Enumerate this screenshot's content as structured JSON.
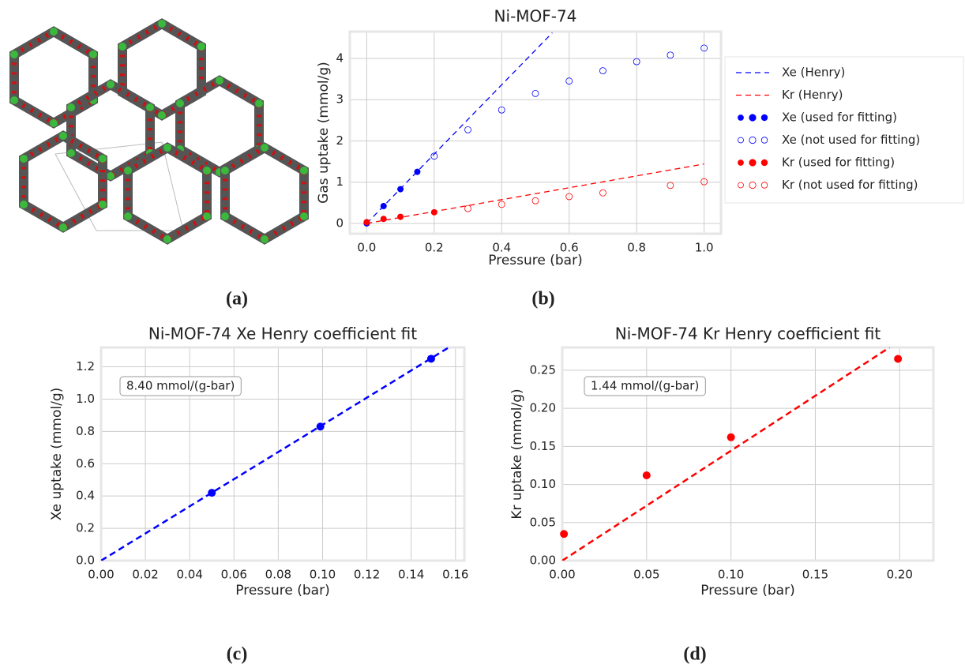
{
  "panel_labels": [
    "(a)",
    "(b)",
    "(c)",
    "(d)"
  ],
  "chart_data": [
    {
      "type": "scatter",
      "title": "Ni-MOF-74",
      "xlabel": "Pressure (bar)",
      "ylabel": "Gas uptake (mmol/g)",
      "xlim": [
        -0.05,
        1.05
      ],
      "ylim": [
        -0.25,
        4.65
      ],
      "xticks": [
        {
          "value": 0,
          "label": "0.0"
        },
        0.2,
        0.4,
        0.6,
        0.8,
        {
          "value": 1,
          "label": "1.0"
        }
      ],
      "yticks": [
        0,
        1,
        2,
        3,
        4
      ],
      "grid": true,
      "legend": "outside right",
      "series": [
        {
          "name": "Xe (Henry)",
          "color": "#0000ff",
          "style": "dashed",
          "x": [
            0,
            0.55
          ],
          "values": [
            0,
            4.62
          ]
        },
        {
          "name": "Kr (Henry)",
          "color": "#ff0000",
          "style": "dashed",
          "x": [
            0,
            1
          ],
          "values": [
            0,
            1.44
          ]
        },
        {
          "name": "Xe (used for fitting)",
          "color": "#0000ff",
          "style": "filled",
          "x": [
            0,
            0.05,
            0.1,
            0.15
          ],
          "values": [
            0,
            0.42,
            0.83,
            1.25
          ]
        },
        {
          "name": "Xe (not used for fitting)",
          "color": "#0000ff",
          "style": "open",
          "x": [
            0.2,
            0.3,
            0.4,
            0.5,
            0.6,
            0.7,
            0.8,
            0.9,
            1
          ],
          "values": [
            1.63,
            2.27,
            2.75,
            3.15,
            3.45,
            3.7,
            3.92,
            4.08,
            4.25
          ]
        },
        {
          "name": "Kr (used for fitting)",
          "color": "#ff0000",
          "style": "filled",
          "x": [
            0,
            0.05,
            0.1,
            0.2
          ],
          "values": [
            0.03,
            0.11,
            0.16,
            0.27
          ]
        },
        {
          "name": "Kr (not used for fitting)",
          "color": "#ff0000",
          "style": "open",
          "x": [
            0.3,
            0.4,
            0.5,
            0.6,
            0.7,
            0.9,
            1
          ],
          "values": [
            0.36,
            0.46,
            0.55,
            0.65,
            0.74,
            0.92,
            1.01
          ]
        }
      ]
    },
    {
      "type": "scatter",
      "title": "Ni-MOF-74 Xe Henry coefficient fit",
      "xlabel": "Pressure (bar)",
      "ylabel": "Xe uptake (mmol/g)",
      "annotation": "8.40 mmol/(g-bar)",
      "xlim": [
        0,
        0.164
      ],
      "ylim": [
        0,
        1.32
      ],
      "xticks": [
        {
          "value": 0,
          "label": "0.00"
        },
        0.02,
        0.04,
        0.06,
        0.08,
        {
          "value": 0.1,
          "label": "0.10"
        },
        0.12,
        0.14,
        0.16
      ],
      "yticks": [
        {
          "value": 0,
          "label": "0.0"
        },
        0.2,
        0.4,
        0.6,
        0.8,
        {
          "value": 1,
          "label": "1.0"
        },
        1.2
      ],
      "grid": true,
      "series": [
        {
          "color": "#0000ff",
          "style": "dashed",
          "x": [
            0,
            0.157
          ],
          "values": [
            0,
            1.32
          ]
        },
        {
          "color": "#0000ff",
          "style": "filled",
          "x": [
            0.05,
            0.099,
            0.149
          ],
          "values": [
            0.42,
            0.83,
            1.25
          ]
        }
      ]
    },
    {
      "type": "scatter",
      "title": "Ni-MOF-74 Kr Henry coefficient fit",
      "xlabel": "Pressure (bar)",
      "ylabel": "Kr uptake (mmol/g)",
      "annotation": "1.44 mmol/(g-bar)",
      "xlim": [
        0,
        0.22
      ],
      "ylim": [
        0,
        0.28
      ],
      "xticks": [
        {
          "value": 0,
          "label": "0.00"
        },
        0.05,
        {
          "value": 0.1,
          "label": "0.10"
        },
        0.15,
        {
          "value": 0.2,
          "label": "0.20"
        }
      ],
      "yticks": [
        {
          "value": 0,
          "label": "0.00"
        },
        0.05,
        {
          "value": 0.1,
          "label": "0.10"
        },
        0.15,
        {
          "value": 0.2,
          "label": "0.20"
        },
        0.25
      ],
      "grid": true,
      "series": [
        {
          "color": "#ff0000",
          "style": "dashed",
          "x": [
            0,
            0.194
          ],
          "values": [
            0,
            0.28
          ]
        },
        {
          "color": "#ff0000",
          "style": "filled",
          "x": [
            0.001,
            0.05,
            0.1,
            0.199
          ],
          "values": [
            0.035,
            0.112,
            0.162,
            0.265
          ]
        }
      ]
    }
  ]
}
